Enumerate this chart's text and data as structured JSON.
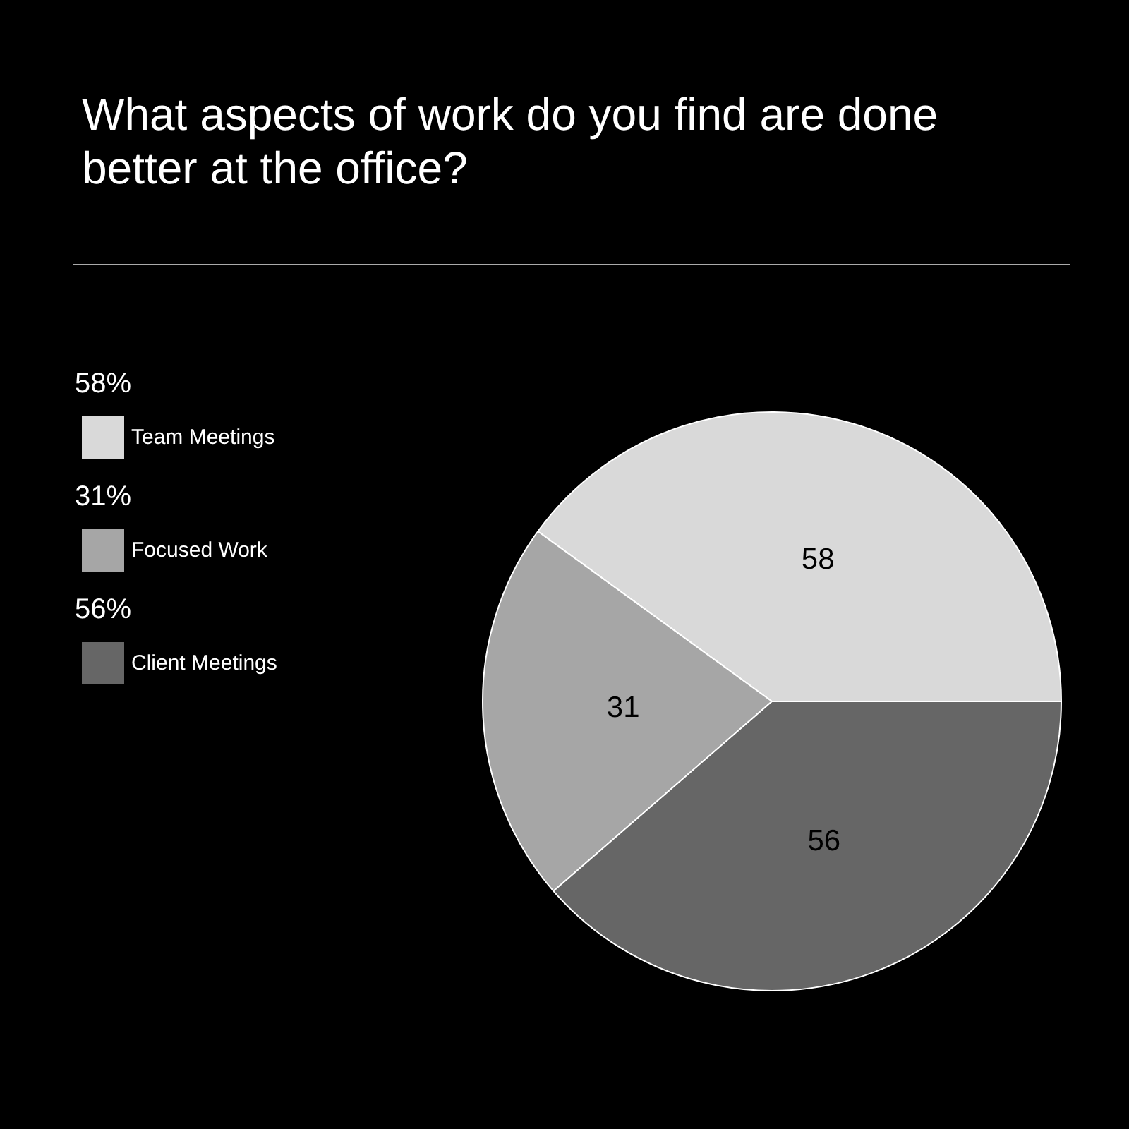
{
  "chart_data": {
    "type": "pie",
    "title": "What aspects of work do you find are done better at the office?",
    "categories": [
      "Team Meetings",
      "Focused Work",
      "Client Meetings"
    ],
    "values": [
      58,
      31,
      56
    ],
    "colors": [
      "#d9d9d9",
      "#a6a6a6",
      "#666666"
    ],
    "annotations": [
      "58%",
      "31%",
      "56%"
    ],
    "data_labels": true,
    "legend": "left"
  }
}
